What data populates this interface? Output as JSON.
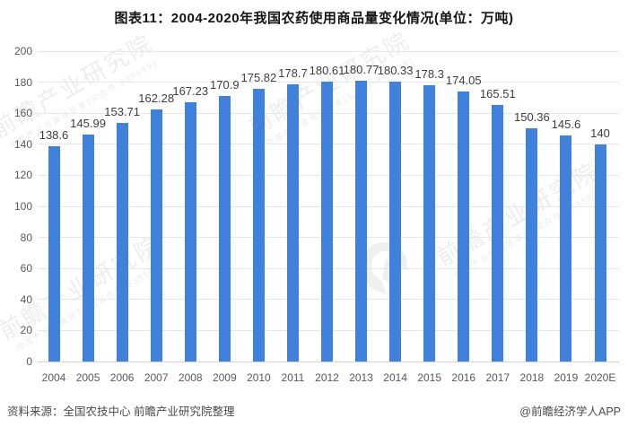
{
  "chart_data": {
    "type": "bar",
    "title": "图表11：2004-2020年我国农药使用商品量变化情况(单位：万吨)",
    "categories": [
      "2004",
      "2005",
      "2006",
      "2007",
      "2008",
      "2009",
      "2010",
      "2011",
      "2012",
      "2013",
      "2014",
      "2015",
      "2016",
      "2017",
      "2018",
      "2019",
      "2020E"
    ],
    "values": [
      138.6,
      145.99,
      153.71,
      162.28,
      167.23,
      170.9,
      175.82,
      178.7,
      180.61,
      180.77,
      180.33,
      178.3,
      174.05,
      165.51,
      150.36,
      145.6,
      140
    ],
    "xlabel": "",
    "ylabel": "",
    "unit": "万吨",
    "ylim": [
      0,
      200
    ],
    "ytick_step": 20,
    "grid": true,
    "legend": null,
    "bar_color": "#4081DC",
    "gridline_color": "#e7e7e7",
    "axis_label_color": "#595959",
    "value_label_color": "#3d3d3d"
  },
  "watermark": {
    "text": "前瞻产业研究院",
    "sub": "中国产业咨询领导者(公众号:839599)"
  },
  "footer": {
    "source": "资料来源：全国农技中心 前瞻产业研究院整理",
    "credit": "@前瞻经济学人APP"
  }
}
